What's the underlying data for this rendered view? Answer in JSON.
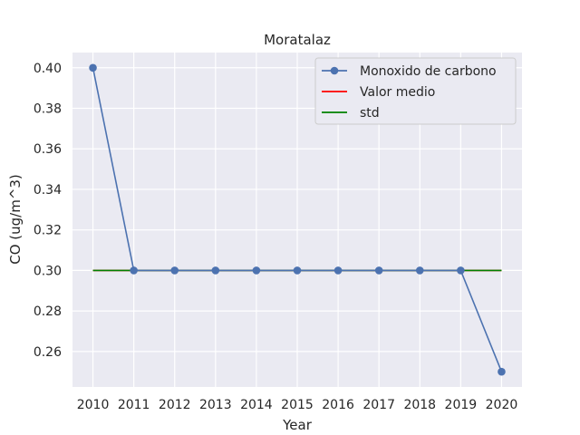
{
  "chart_data": {
    "type": "line",
    "title": "Moratalaz",
    "xlabel": "Year",
    "ylabel": "CO (ug/m^3)",
    "x": [
      2010,
      2011,
      2012,
      2013,
      2014,
      2015,
      2016,
      2017,
      2018,
      2019,
      2020
    ],
    "xticks": [
      "2010",
      "2011",
      "2012",
      "2013",
      "2014",
      "2015",
      "2016",
      "2017",
      "2018",
      "2019",
      "2020"
    ],
    "yticks": [
      "0.26",
      "0.28",
      "0.30",
      "0.32",
      "0.34",
      "0.36",
      "0.38",
      "0.40"
    ],
    "ylim": [
      0.2425,
      0.4075
    ],
    "xlim": [
      2009.5,
      2020.5
    ],
    "grid": true,
    "legend_position": "top-right",
    "series": [
      {
        "name": "Monoxido de carbono",
        "color": "#4c72b0",
        "marker": "circle",
        "values": [
          0.4,
          0.3,
          0.3,
          0.3,
          0.3,
          0.3,
          0.3,
          0.3,
          0.3,
          0.3,
          0.25
        ]
      },
      {
        "name": "Valor medio",
        "color": "#ff0000",
        "marker": "none",
        "values": [
          0.3,
          0.3,
          0.3,
          0.3,
          0.3,
          0.3,
          0.3,
          0.3,
          0.3,
          0.3,
          0.3
        ]
      },
      {
        "name": "std",
        "color": "#008000",
        "marker": "none",
        "values": [
          0.3,
          0.3,
          0.3,
          0.3,
          0.3,
          0.3,
          0.3,
          0.3,
          0.3,
          0.3,
          0.3
        ]
      }
    ]
  }
}
